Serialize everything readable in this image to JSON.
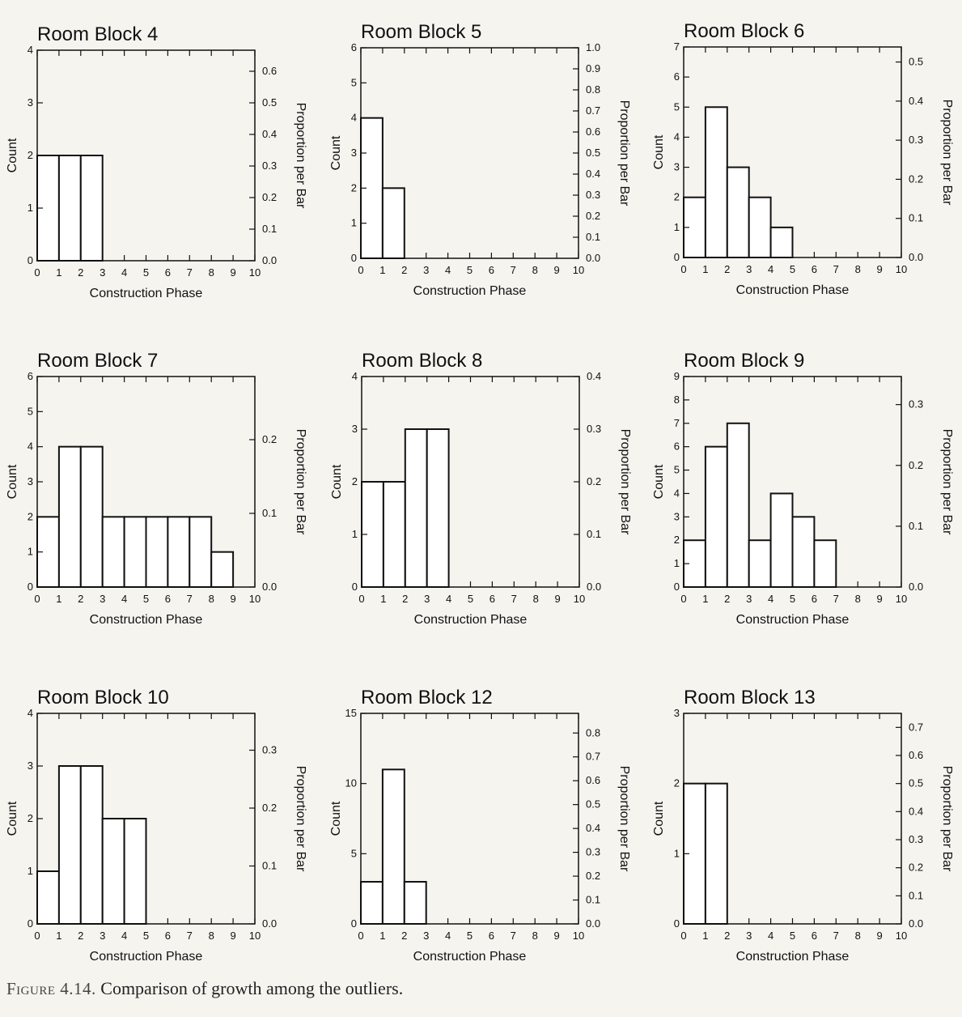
{
  "caption": {
    "label": "Figure 4.14.",
    "text": "Comparison of growth among the outliers."
  },
  "chart_data": [
    {
      "type": "bar",
      "title": "Room Block 4",
      "xlabel": "Construction Phase",
      "ylabel": "Count",
      "y2label": "Proportion per Bar",
      "bin_edges": [
        0,
        1,
        2,
        3
      ],
      "values": [
        2,
        2,
        2
      ],
      "xlim": [
        0,
        10
      ],
      "x_ticks": [
        "0",
        "1",
        "2",
        "3",
        "4",
        "5",
        "6",
        "7",
        "8",
        "9",
        "10"
      ],
      "ylim": [
        0,
        4
      ],
      "y_ticks": [
        "0",
        "1",
        "2",
        "3",
        "4"
      ],
      "y2_ticks": [
        [
          0.0,
          "0.0"
        ],
        [
          0.1,
          "0.1"
        ],
        [
          0.2,
          "0.2"
        ],
        [
          0.3,
          "0.3"
        ],
        [
          0.4,
          "0.4"
        ],
        [
          0.5,
          "0.5"
        ],
        [
          0.6,
          "0.6"
        ]
      ],
      "y2_per_count": 6
    },
    {
      "type": "bar",
      "title": "Room Block 5",
      "xlabel": "Construction Phase",
      "ylabel": "Count",
      "y2label": "Proportion per Bar",
      "bin_edges": [
        0,
        1,
        2
      ],
      "values": [
        4,
        2
      ],
      "xlim": [
        0,
        10
      ],
      "x_ticks": [
        "0",
        "1",
        "2",
        "3",
        "4",
        "5",
        "6",
        "7",
        "8",
        "9",
        "10"
      ],
      "ylim": [
        0,
        6
      ],
      "y_ticks": [
        "0",
        "1",
        "2",
        "3",
        "4",
        "5",
        "6"
      ],
      "y2_ticks": [
        [
          0.0,
          "0.0"
        ],
        [
          0.1,
          "0.1"
        ],
        [
          0.2,
          "0.2"
        ],
        [
          0.3,
          "0.3"
        ],
        [
          0.4,
          "0.4"
        ],
        [
          0.5,
          "0.5"
        ],
        [
          0.6,
          "0.6"
        ],
        [
          0.7,
          "0.7"
        ],
        [
          0.8,
          "0.8"
        ],
        [
          0.9,
          "0.9"
        ],
        [
          1.0,
          "1.0"
        ]
      ],
      "y2_per_count": 6
    },
    {
      "type": "bar",
      "title": "Room Block 6",
      "xlabel": "Construction Phase",
      "ylabel": "Count",
      "y2label": "Proportion per Bar",
      "bin_edges": [
        0,
        1,
        2,
        3,
        4,
        5
      ],
      "values": [
        2,
        5,
        3,
        2,
        1
      ],
      "xlim": [
        0,
        10
      ],
      "x_ticks": [
        "0",
        "1",
        "2",
        "3",
        "4",
        "5",
        "6",
        "7",
        "8",
        "9",
        "10"
      ],
      "ylim": [
        0,
        7
      ],
      "y_ticks": [
        "0",
        "1",
        "2",
        "3",
        "4",
        "5",
        "6",
        "7"
      ],
      "y2_ticks": [
        [
          0.0,
          "0.0"
        ],
        [
          0.1,
          "0.1"
        ],
        [
          0.2,
          "0.2"
        ],
        [
          0.3,
          "0.3"
        ],
        [
          0.4,
          "0.4"
        ],
        [
          0.5,
          "0.5"
        ]
      ],
      "y2_per_count": 13
    },
    {
      "type": "bar",
      "title": "Room Block 7",
      "xlabel": "Construction Phase",
      "ylabel": "Count",
      "y2label": "Proportion per Bar",
      "bin_edges": [
        0,
        1,
        2,
        3,
        4,
        5,
        6,
        7,
        8,
        9
      ],
      "values": [
        2,
        4,
        4,
        2,
        2,
        2,
        2,
        2,
        1
      ],
      "xlim": [
        0,
        10
      ],
      "x_ticks": [
        "0",
        "1",
        "2",
        "3",
        "4",
        "5",
        "6",
        "7",
        "8",
        "9",
        "10"
      ],
      "ylim": [
        0,
        6
      ],
      "y_ticks": [
        "0",
        "1",
        "2",
        "3",
        "4",
        "5",
        "6"
      ],
      "y2_ticks": [
        [
          0.0,
          "0.0"
        ],
        [
          0.1,
          "0.1"
        ],
        [
          0.2,
          "0.2"
        ]
      ],
      "y2_per_count": 21
    },
    {
      "type": "bar",
      "title": "Room Block 8",
      "xlabel": "Construction Phase",
      "ylabel": "Count",
      "y2label": "Proportion per Bar",
      "bin_edges": [
        0,
        1,
        2,
        3,
        4
      ],
      "values": [
        2,
        2,
        3,
        3
      ],
      "xlim": [
        0,
        10
      ],
      "x_ticks": [
        "0",
        "1",
        "2",
        "3",
        "4",
        "5",
        "6",
        "7",
        "8",
        "9",
        "10"
      ],
      "ylim": [
        0,
        4
      ],
      "y_ticks": [
        "0",
        "1",
        "2",
        "3",
        "4"
      ],
      "y2_ticks": [
        [
          0.0,
          "0.0"
        ],
        [
          0.1,
          "0.1"
        ],
        [
          0.2,
          "0.2"
        ],
        [
          0.3,
          "0.3"
        ],
        [
          0.4,
          "0.4"
        ]
      ],
      "y2_per_count": 10
    },
    {
      "type": "bar",
      "title": "Room Block 9",
      "xlabel": "Construction Phase",
      "ylabel": "Count",
      "y2label": "Proportion per Bar",
      "bin_edges": [
        0,
        1,
        2,
        3,
        4,
        5,
        6,
        7
      ],
      "values": [
        2,
        6,
        7,
        2,
        4,
        3,
        2
      ],
      "xlim": [
        0,
        10
      ],
      "x_ticks": [
        "0",
        "1",
        "2",
        "3",
        "4",
        "5",
        "6",
        "7",
        "8",
        "9",
        "10"
      ],
      "ylim": [
        0,
        9
      ],
      "y_ticks": [
        "0",
        "1",
        "2",
        "3",
        "4",
        "5",
        "6",
        "7",
        "8",
        "9"
      ],
      "y2_ticks": [
        [
          0.0,
          "0.0"
        ],
        [
          0.1,
          "0.1"
        ],
        [
          0.2,
          "0.2"
        ],
        [
          0.3,
          "0.3"
        ]
      ],
      "y2_per_count": 26
    },
    {
      "type": "bar",
      "title": "Room Block 10",
      "xlabel": "Construction Phase",
      "ylabel": "Count",
      "y2label": "Proportion per Bar",
      "bin_edges": [
        0,
        1,
        2,
        3,
        4,
        5
      ],
      "values": [
        1,
        3,
        3,
        2,
        2
      ],
      "xlim": [
        0,
        10
      ],
      "x_ticks": [
        "0",
        "1",
        "2",
        "3",
        "4",
        "5",
        "6",
        "7",
        "8",
        "9",
        "10"
      ],
      "ylim": [
        0,
        4
      ],
      "y_ticks": [
        "0",
        "1",
        "2",
        "3",
        "4"
      ],
      "y2_ticks": [
        [
          0.0,
          "0.0"
        ],
        [
          0.1,
          "0.1"
        ],
        [
          0.2,
          "0.2"
        ],
        [
          0.3,
          "0.3"
        ]
      ],
      "y2_per_count": 11
    },
    {
      "type": "bar",
      "title": "Room Block 12",
      "xlabel": "Construction Phase",
      "ylabel": "Count",
      "y2label": "Proportion per Bar",
      "bin_edges": [
        0,
        1,
        2,
        3
      ],
      "values": [
        3,
        11,
        3
      ],
      "xlim": [
        0,
        10
      ],
      "x_ticks": [
        "0",
        "1",
        "2",
        "3",
        "4",
        "5",
        "6",
        "7",
        "8",
        "9",
        "10"
      ],
      "ylim": [
        0,
        15
      ],
      "y_ticks": [
        "0",
        "5",
        "10",
        "15"
      ],
      "y_tick_values": [
        0,
        5,
        10,
        15
      ],
      "y2_ticks": [
        [
          0.0,
          "0.0"
        ],
        [
          0.1,
          "0.1"
        ],
        [
          0.2,
          "0.2"
        ],
        [
          0.3,
          "0.3"
        ],
        [
          0.4,
          "0.4"
        ],
        [
          0.5,
          "0.5"
        ],
        [
          0.6,
          "0.6"
        ],
        [
          0.7,
          "0.7"
        ],
        [
          0.8,
          "0.8"
        ]
      ],
      "y2_per_count": 17
    },
    {
      "type": "bar",
      "title": "Room Block 13",
      "xlabel": "Construction Phase",
      "ylabel": "Count",
      "y2label": "Proportion per Bar",
      "bin_edges": [
        0,
        1,
        2
      ],
      "values": [
        2,
        2
      ],
      "xlim": [
        0,
        10
      ],
      "x_ticks": [
        "0",
        "1",
        "2",
        "3",
        "4",
        "5",
        "6",
        "7",
        "8",
        "9",
        "10"
      ],
      "ylim": [
        0,
        3
      ],
      "y_ticks": [
        "0",
        "1",
        "2",
        "3"
      ],
      "y2_ticks": [
        [
          0.0,
          "0.0"
        ],
        [
          0.1,
          "0.1"
        ],
        [
          0.2,
          "0.2"
        ],
        [
          0.3,
          "0.3"
        ],
        [
          0.4,
          "0.4"
        ],
        [
          0.5,
          "0.5"
        ],
        [
          0.6,
          "0.6"
        ],
        [
          0.7,
          "0.7"
        ]
      ],
      "y2_per_count": 4
    }
  ]
}
